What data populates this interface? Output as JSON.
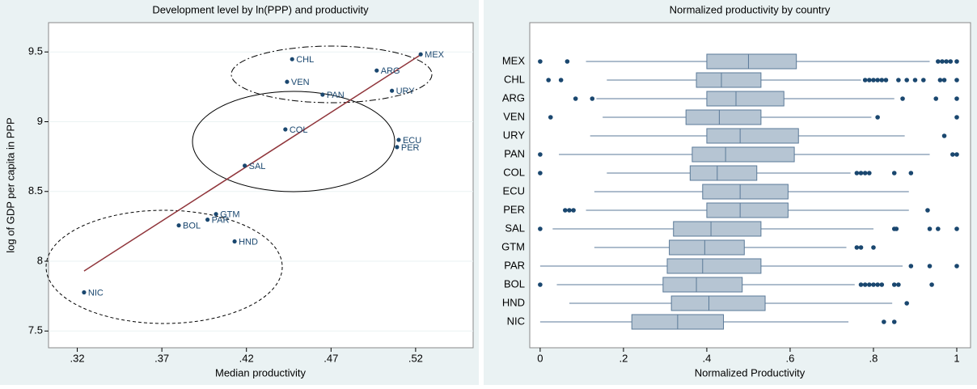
{
  "chart_data": [
    {
      "type": "scatter",
      "title": "Development level by ln(PPP) and productivity",
      "x_label": "Median productivity",
      "y_label": "log of GDP per capita in PPP",
      "labels": [
        "MEX",
        "CHL",
        "ARG",
        "VEN",
        "URY",
        "PAN",
        "COL",
        "ECU",
        "PER",
        "SAL",
        "GTM",
        "PAR",
        "BOL",
        "HND",
        "NIC"
      ],
      "x": [
        0.523,
        0.447,
        0.497,
        0.444,
        0.506,
        0.465,
        0.443,
        0.51,
        0.509,
        0.419,
        0.402,
        0.397,
        0.38,
        0.413,
        0.324
      ],
      "y": [
        9.483,
        9.448,
        9.367,
        9.286,
        9.222,
        9.194,
        8.945,
        8.87,
        8.818,
        8.685,
        8.338,
        8.298,
        8.257,
        8.142,
        7.777
      ],
      "color": "#1a476f",
      "fit_line": {
        "x": [
          0.324,
          0.523
        ],
        "y": [
          7.93,
          9.48
        ],
        "color": "#90353b"
      },
      "xlim": [
        0.303,
        0.554
      ],
      "ylim": [
        7.38,
        9.71
      ],
      "xticks": [
        {
          "value": 0.32,
          "label": ".32"
        },
        {
          "value": 0.37,
          "label": ".37"
        },
        {
          "value": 0.42,
          "label": ".42"
        },
        {
          "value": 0.47,
          "label": ".47"
        },
        {
          "value": 0.52,
          "label": ".52"
        }
      ],
      "yticks": [
        7.5,
        8,
        8.5,
        9,
        9.5
      ],
      "grid": true
    },
    {
      "type": "box",
      "title": "Normalized productivity by country",
      "x_label": "Normalized Productivity",
      "categories": [
        "MEX",
        "CHL",
        "ARG",
        "VEN",
        "URY",
        "PAN",
        "COL",
        "ECU",
        "PER",
        "SAL",
        "GTM",
        "PAR",
        "BOL",
        "HND",
        "NIC"
      ],
      "whisker_low": [
        0.11,
        0.16,
        0.135,
        0.15,
        0.12,
        0.045,
        0.16,
        0.13,
        0.11,
        0.03,
        0.13,
        0,
        0.04,
        0.07,
        0
      ],
      "q1": [
        0.4,
        0.375,
        0.4,
        0.35,
        0.4,
        0.365,
        0.36,
        0.39,
        0.4,
        0.32,
        0.31,
        0.305,
        0.295,
        0.315,
        0.22
      ],
      "median": [
        0.5,
        0.435,
        0.47,
        0.43,
        0.48,
        0.445,
        0.425,
        0.48,
        0.48,
        0.41,
        0.395,
        0.39,
        0.375,
        0.405,
        0.33
      ],
      "q3": [
        0.615,
        0.53,
        0.585,
        0.53,
        0.62,
        0.61,
        0.52,
        0.595,
        0.595,
        0.53,
        0.49,
        0.53,
        0.485,
        0.54,
        0.44
      ],
      "whisker_high": [
        0.935,
        0.77,
        0.85,
        0.795,
        0.875,
        0.935,
        0.745,
        0.885,
        0.885,
        0.8,
        0.735,
        0.87,
        0.755,
        0.845,
        0.74
      ],
      "outliers": [
        [
          0,
          0.065,
          0.955,
          0.965,
          0.975,
          0.985,
          1
        ],
        [
          0.02,
          0.05,
          0.78,
          0.79,
          0.8,
          0.81,
          0.82,
          0.83,
          0.86,
          0.88,
          0.9,
          0.92,
          0.96,
          0.97,
          1
        ],
        [
          0.085,
          0.125,
          0.87,
          0.95,
          1
        ],
        [
          0.025,
          0.81,
          1
        ],
        [
          0.97
        ],
        [
          0,
          0.99,
          1
        ],
        [
          0,
          0.76,
          0.77,
          0.78,
          0.79,
          0.85,
          0.89
        ],
        [],
        [
          0.06,
          0.07,
          0.08,
          0.93
        ],
        [
          0,
          0.85,
          0.855,
          0.935,
          0.955,
          1
        ],
        [
          0.76,
          0.77,
          0.8
        ],
        [
          0.89,
          0.935,
          1
        ],
        [
          0,
          0.77,
          0.78,
          0.79,
          0.8,
          0.81,
          0.82,
          0.85,
          0.86,
          0.94
        ],
        [
          0.88
        ],
        [
          0.825,
          0.85
        ]
      ],
      "color": "#b6c5d3",
      "outlier_color": "#1a476f",
      "xlim": [
        -0.025,
        1.033
      ],
      "xticks": [
        0,
        {
          "value": 0.2,
          "label": ".2"
        },
        {
          "value": 0.4,
          "label": ".4"
        },
        {
          "value": 0.6,
          "label": ".6"
        },
        {
          "value": 0.8,
          "label": ".8"
        },
        1
      ],
      "grid": false
    }
  ]
}
